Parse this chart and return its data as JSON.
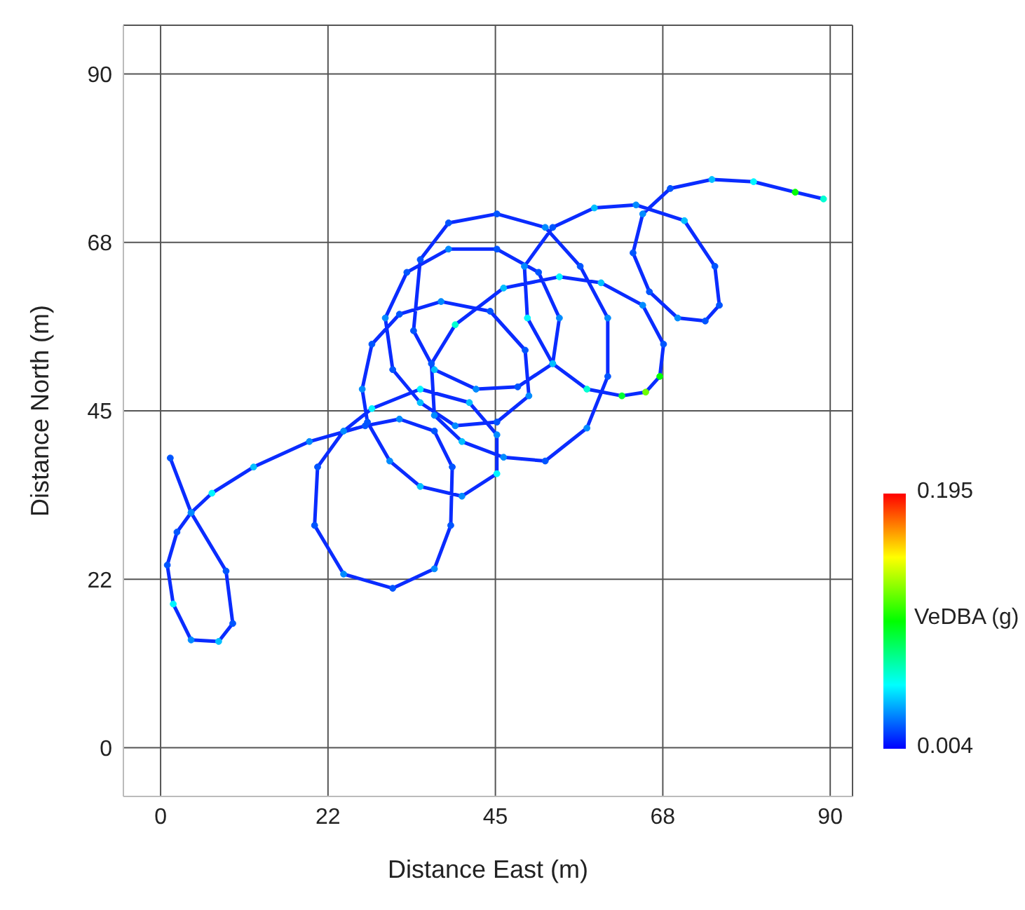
{
  "chart_data": {
    "type": "scatter",
    "xlabel": "Distance East (m)",
    "ylabel": "Distance North (m)",
    "clabel": "VeDBA ($_{}$g)",
    "clim": [
      0.004,
      0.195
    ],
    "cticks": [
      0.004,
      0.195
    ],
    "xlim": [
      -5,
      93
    ],
    "ylim": [
      -6.5,
      96.5
    ],
    "xticks": [
      0,
      {
        "value": 22.5,
        "label": "22"
      },
      45,
      {
        "value": 67.5,
        "label": "68"
      },
      90
    ],
    "yticks": [
      0,
      {
        "value": 22.5,
        "label": "22"
      },
      45,
      {
        "value": 67.5,
        "label": "68"
      },
      90
    ],
    "grid": true,
    "marker": "circle",
    "line_style": "solid",
    "series": [
      {
        "type": "line",
        "color": "#0a2cff",
        "marker": "none",
        "x": [
          1.3,
          4.1,
          8.8,
          9.7,
          7.8,
          4.1,
          1.7,
          0.9,
          2.2,
          4.1,
          6.9,
          12.5,
          20,
          27.5,
          32.1,
          36.8,
          39.2,
          39,
          36.8,
          31.2,
          24.6,
          20.7,
          21.1,
          24.6,
          28.4,
          34.9,
          41.5,
          45.2,
          45.2,
          40.5,
          34.9,
          30.8,
          27.8,
          27.1,
          28.4,
          32.1,
          37.7,
          44.3,
          49,
          49.5,
          45.2,
          39.6,
          34.9,
          31.2,
          30.2,
          33.1,
          38.7,
          45.2,
          50.8,
          53.6,
          52.7,
          48,
          42.4,
          36.8,
          34,
          34.9,
          38.7,
          45.2,
          51.7,
          56.4,
          60.1,
          60.1,
          57.3,
          51.7,
          46.1,
          40.5,
          36.8,
          36.4,
          39.6,
          46.1,
          53.6,
          59.2,
          64.8,
          67.6,
          67.1,
          65.2,
          62,
          57.3,
          52.7,
          49.3,
          48.9,
          52.7,
          58.3,
          63.9,
          70.4,
          74.5,
          75.1,
          73.2,
          69.5,
          65.7,
          63.5,
          64.8,
          68.5,
          74.1,
          79.7,
          85.3,
          89.1
        ],
        "values": [
          38.7,
          31.4,
          23.6,
          16.6,
          14.2,
          14.4,
          19.2,
          24.4,
          28.8,
          31.4,
          34,
          37.5,
          40.9,
          43,
          43.9,
          42.3,
          37.5,
          29.7,
          23.9,
          21.3,
          23.2,
          29.7,
          37.5,
          42.3,
          45.3,
          47.9,
          46.1,
          41.8,
          36.6,
          33.6,
          34.9,
          38.3,
          43.5,
          47.9,
          53.9,
          57.9,
          59.6,
          58.3,
          53.1,
          47,
          43.5,
          43,
          46.1,
          50.5,
          57.4,
          63.5,
          66.6,
          66.6,
          63.5,
          57.4,
          51.3,
          48.2,
          47.9,
          50.5,
          55.7,
          65.2,
          70.1,
          71.3,
          69.5,
          64.3,
          57.4,
          49.6,
          42.7,
          38.3,
          38.8,
          40.9,
          44.4,
          51.3,
          56.5,
          61.4,
          62.9,
          62.1,
          59.1,
          53.9,
          49.6,
          47.5,
          47,
          47.9,
          51.3,
          57.4,
          64.3,
          69.5,
          72.1,
          72.5,
          70.4,
          64.3,
          59.1,
          57,
          57.4,
          60.9,
          66.1,
          71.3,
          74.7,
          75.9,
          75.6,
          74.2,
          73.3
        ]
      },
      {
        "x": [
          1.3,
          4.1,
          8.8,
          9.7,
          7.8,
          4.1,
          1.7,
          0.9,
          2.2,
          4.1,
          6.9,
          12.5,
          20,
          27.5,
          32.1,
          36.8,
          39.2,
          39,
          36.8,
          31.2,
          24.6,
          20.7,
          21.1,
          24.6,
          28.4,
          34.9,
          41.5,
          45.2,
          45.2,
          40.5,
          34.9,
          30.8,
          27.8,
          27.1,
          28.4,
          32.1,
          37.7,
          44.3,
          49,
          49.5,
          45.2,
          39.6,
          34.9,
          31.2,
          30.2,
          33.1,
          38.7,
          45.2,
          50.8,
          53.6,
          52.7,
          48,
          42.4,
          36.8,
          34,
          34.9,
          38.7,
          45.2,
          51.7,
          56.4,
          60.1,
          60.1,
          57.3,
          51.7,
          46.1,
          40.5,
          36.8,
          36.4,
          39.6,
          46.1,
          53.6,
          59.2,
          64.8,
          67.6,
          67.1,
          65.2,
          62,
          57.3,
          52.7,
          49.3,
          48.9,
          52.7,
          58.3,
          63.9,
          70.4,
          74.5,
          75.1,
          73.2,
          69.5,
          65.7,
          63.5,
          64.8,
          68.5,
          74.1,
          79.7,
          85.3,
          89.1
        ],
        "values": [
          38.7,
          31.4,
          23.6,
          16.6,
          14.2,
          14.4,
          19.2,
          24.4,
          28.8,
          31.4,
          34,
          37.5,
          40.9,
          43,
          43.9,
          42.3,
          37.5,
          29.7,
          23.9,
          21.3,
          23.2,
          29.7,
          37.5,
          42.3,
          45.3,
          47.9,
          46.1,
          41.8,
          36.6,
          33.6,
          34.9,
          38.3,
          43.5,
          47.9,
          53.9,
          57.9,
          59.6,
          58.3,
          53.1,
          47,
          43.5,
          43,
          46.1,
          50.5,
          57.4,
          63.5,
          66.6,
          66.6,
          63.5,
          57.4,
          51.3,
          48.2,
          47.9,
          50.5,
          55.7,
          65.2,
          70.1,
          71.3,
          69.5,
          64.3,
          57.4,
          49.6,
          42.7,
          38.3,
          38.8,
          40.9,
          44.4,
          51.3,
          56.5,
          61.4,
          62.9,
          62.1,
          59.1,
          53.9,
          49.6,
          47.5,
          47,
          47.9,
          51.3,
          57.4,
          64.3,
          69.5,
          72.1,
          72.5,
          70.4,
          64.3,
          59.1,
          57,
          57.4,
          60.9,
          66.1,
          71.3,
          74.7,
          75.9,
          75.6,
          74.2,
          73.3
        ],
        "colors": [
          "#0055ff",
          "#008bff",
          "#0055ff",
          "#0055ff",
          "#00c0ff",
          "#008bff",
          "#00f6ff",
          "#0055ff",
          "#0055ff",
          "#008bff",
          "#00f6ff",
          "#00c0ff",
          "#008bff",
          "#0055ff",
          "#008bff",
          "#0055ff",
          "#0055ff",
          "#0055ff",
          "#008bff",
          "#0055ff",
          "#008bff",
          "#0055ff",
          "#0055ff",
          "#008bff",
          "#00f6ff",
          "#00f6ff",
          "#00c0ff",
          "#008bff",
          "#00f6ff",
          "#008bff",
          "#00c0ff",
          "#008bff",
          "#0055ff",
          "#008bff",
          "#0055ff",
          "#0055ff",
          "#008bff",
          "#0055ff",
          "#0055ff",
          "#008bff",
          "#0055ff",
          "#008bff",
          "#00c0ff",
          "#0055ff",
          "#008bff",
          "#0055ff",
          "#008bff",
          "#0055ff",
          "#0055ff",
          "#008bff",
          "#0055ff",
          "#0055ff",
          "#008bff",
          "#00c0ff",
          "#0055ff",
          "#0055ff",
          "#0055ff",
          "#0055ff",
          "#008bff",
          "#0055ff",
          "#008bff",
          "#0055ff",
          "#008bff",
          "#0055ff",
          "#008bff",
          "#00c0ff",
          "#008bff",
          "#0055ff",
          "#00ffd3",
          "#00c0ff",
          "#00f6ff",
          "#00c0ff",
          "#008bff",
          "#0055ff",
          "#03ff00",
          "#6dff00",
          "#00ff33",
          "#00ffd3",
          "#00c0ff",
          "#00f6ff",
          "#008bff",
          "#0055ff",
          "#00c0ff",
          "#008bff",
          "#00c0ff",
          "#0055ff",
          "#0055ff",
          "#0055ff",
          "#008bff",
          "#0055ff",
          "#0055ff",
          "#008bff",
          "#0055ff",
          "#00c0ff",
          "#00f6ff",
          "#03ff00",
          "#00ffd3"
        ],
        "cvalues": [
          0.02,
          0.03,
          0.02,
          0.02,
          0.04,
          0.03,
          0.05,
          0.02,
          0.02,
          0.03,
          0.05,
          0.04,
          0.03,
          0.02,
          0.03,
          0.02,
          0.02,
          0.02,
          0.03,
          0.02,
          0.03,
          0.02,
          0.02,
          0.03,
          0.05,
          0.05,
          0.04,
          0.03,
          0.05,
          0.03,
          0.04,
          0.03,
          0.02,
          0.03,
          0.02,
          0.02,
          0.03,
          0.02,
          0.02,
          0.03,
          0.02,
          0.03,
          0.04,
          0.02,
          0.03,
          0.02,
          0.03,
          0.02,
          0.02,
          0.03,
          0.02,
          0.02,
          0.03,
          0.04,
          0.02,
          0.02,
          0.02,
          0.02,
          0.03,
          0.02,
          0.03,
          0.02,
          0.03,
          0.02,
          0.03,
          0.04,
          0.03,
          0.02,
          0.06,
          0.04,
          0.05,
          0.04,
          0.03,
          0.02,
          0.1,
          0.12,
          0.09,
          0.06,
          0.04,
          0.05,
          0.03,
          0.02,
          0.04,
          0.03,
          0.04,
          0.02,
          0.02,
          0.02,
          0.03,
          0.02,
          0.02,
          0.03,
          0.02,
          0.04,
          0.05,
          0.1,
          0.06
        ]
      }
    ]
  }
}
